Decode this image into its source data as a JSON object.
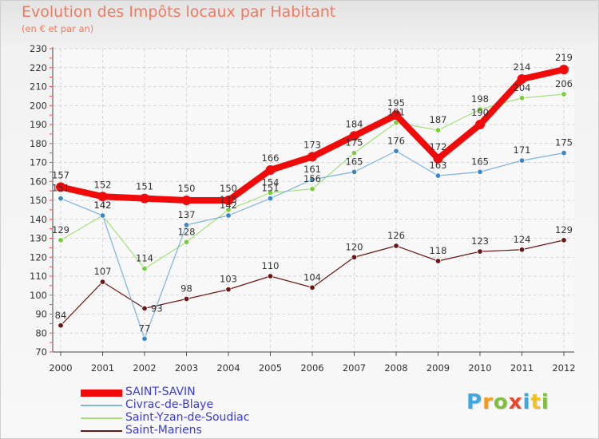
{
  "title": "Evolution des Impôts locaux par Habitant",
  "subtitle": "(en € et par an)",
  "logo": {
    "parts": [
      "P",
      "r",
      "o",
      "x",
      "i",
      "t",
      "i"
    ],
    "colors": [
      "#3fa7e0",
      "#f39a1c",
      "#7fbf3c",
      "#e8452c",
      "#3fa7e0",
      "#f3c21c",
      "#7fbf3c"
    ]
  },
  "chart_data": {
    "type": "line",
    "title": "Evolution des Impôts locaux par Habitant",
    "subtitle": "(en € et par an)",
    "xlabel": "",
    "ylabel": "",
    "x": [
      "2000",
      "2001",
      "2002",
      "2003",
      "2004",
      "2005",
      "2006",
      "2007",
      "2008",
      "2009",
      "2010",
      "2011",
      "2012"
    ],
    "ylim": [
      70,
      230
    ],
    "yticks": [
      70,
      80,
      90,
      100,
      110,
      120,
      130,
      140,
      150,
      160,
      170,
      180,
      190,
      200,
      210,
      220,
      230
    ],
    "grid": true,
    "legend": "bottom-left",
    "series": [
      {
        "name": "Saint-Mariens",
        "color": "#6b1616",
        "marker": "#6b1616",
        "width": 1.2,
        "r": 3.3,
        "values": [
          84,
          107,
          93,
          98,
          103,
          110,
          104,
          120,
          126,
          118,
          123,
          124,
          129
        ],
        "labels": [
          "84",
          "107",
          "93",
          "98",
          "103",
          "110",
          "104",
          "120",
          "126",
          "118",
          "123",
          "124",
          "129"
        ],
        "label_pos": [
          "above",
          "above",
          "right",
          "above",
          "above",
          "above",
          "above",
          "above",
          "above",
          "above",
          "above",
          "above",
          "above"
        ]
      },
      {
        "name": "Saint-Yzan-de-Soudiac",
        "color": "#a6e07a",
        "marker": "#7acc3a",
        "width": 1.2,
        "r": 3.3,
        "values": [
          129,
          142,
          114,
          128,
          145,
          154,
          156,
          175,
          191,
          187,
          198,
          204,
          206
        ],
        "labels": [
          "129",
          "142",
          "114",
          "128",
          "145",
          "154",
          "156",
          "175",
          "191",
          "187",
          "198",
          "204",
          "206"
        ],
        "label_pos": [
          "above",
          "above",
          "above",
          "above",
          "above",
          "above",
          "above",
          "above",
          "above",
          "above",
          "above",
          "above",
          "above"
        ]
      },
      {
        "name": "Civrac-de-Blaye",
        "color": "#7fb2dc",
        "marker": "#3a86c8",
        "width": 1.2,
        "r": 3.3,
        "values": [
          151,
          142,
          77,
          137,
          142,
          151,
          161,
          165,
          176,
          163,
          165,
          171,
          175
        ],
        "labels": [
          "151",
          "142",
          "77",
          "137",
          "142",
          "151",
          "161",
          "165",
          "176",
          "163",
          "165",
          "171",
          "175"
        ],
        "label_pos": [
          "above",
          "above",
          "above",
          "above",
          "above",
          "above",
          "above",
          "above",
          "above",
          "above",
          "above",
          "above",
          "above"
        ]
      },
      {
        "name": "SAINT-SAVIN",
        "color": "#f00a0a",
        "marker": "#f00a0a",
        "width": 8,
        "r": 6,
        "values": [
          157,
          152,
          151,
          150,
          150,
          166,
          173,
          184,
          195,
          172,
          190,
          214,
          219
        ],
        "labels": [
          "157",
          "152",
          "151",
          "150",
          "150",
          "166",
          "173",
          "184",
          "195",
          "172",
          "190",
          "214",
          "219"
        ],
        "label_pos": [
          "above",
          "above",
          "above",
          "above",
          "above",
          "above",
          "above",
          "above",
          "above",
          "above",
          "above",
          "above",
          "above"
        ]
      }
    ],
    "legend_order": [
      "SAINT-SAVIN",
      "Civrac-de-Blaye",
      "Saint-Yzan-de-Soudiac",
      "Saint-Mariens"
    ]
  }
}
